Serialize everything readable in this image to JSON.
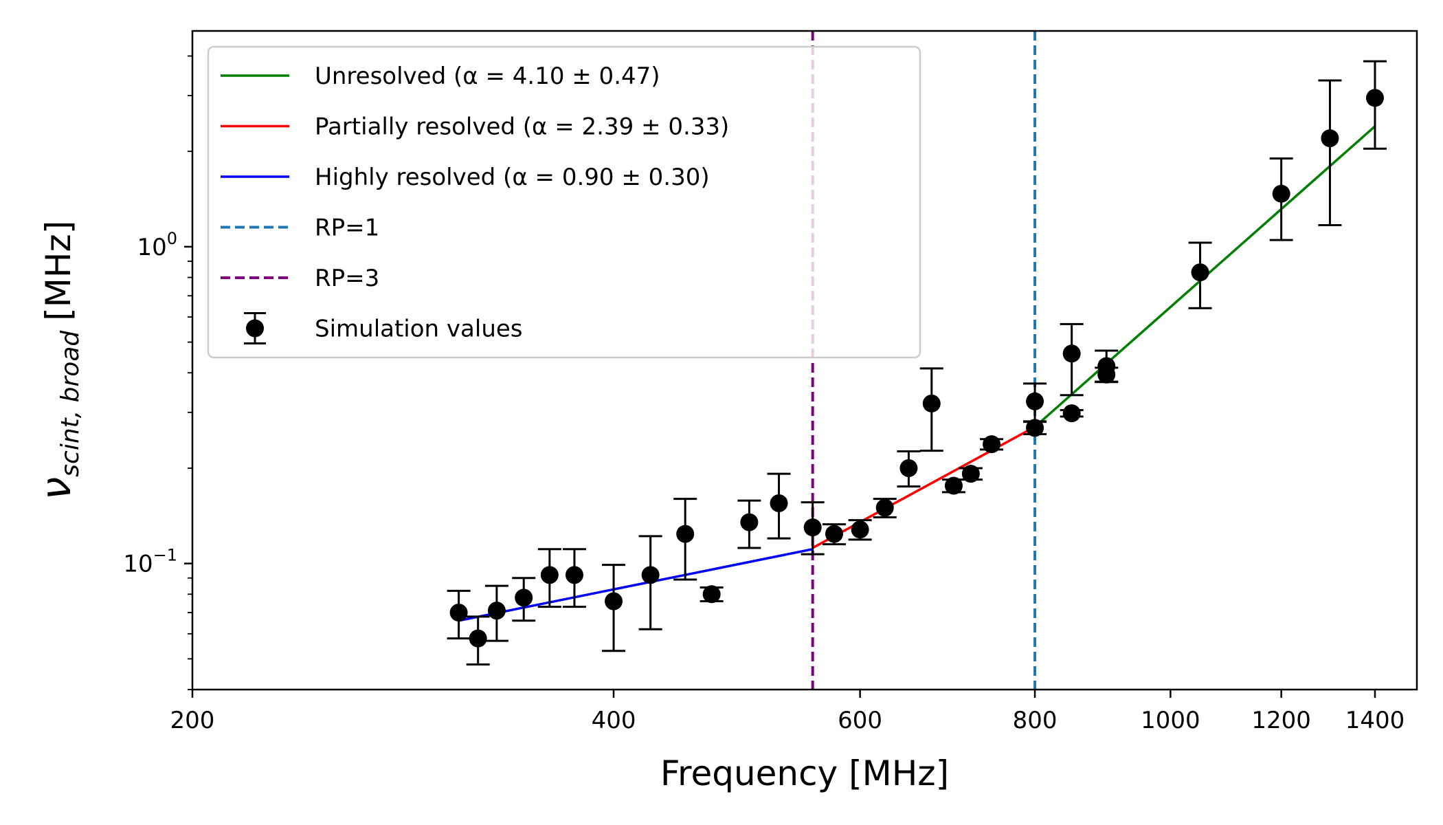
{
  "chart_data": {
    "type": "scatter",
    "xlabel": "Frequency [MHz]",
    "ylabel": {
      "symbol": "ν",
      "subscript": "scint, broad",
      "unit": "[MHz]"
    },
    "xscale": "log",
    "yscale": "log",
    "xlim": [
      200,
      1500
    ],
    "ylim": [
      0.04,
      4.8
    ],
    "x_ticks": [
      {
        "value": 200,
        "label": "200"
      },
      {
        "value": 400,
        "label": "400"
      },
      {
        "value": 600,
        "label": "600"
      },
      {
        "value": 800,
        "label": "800"
      },
      {
        "value": 1000,
        "label": "1000"
      },
      {
        "value": 1200,
        "label": "1200"
      },
      {
        "value": 1400,
        "label": "1400"
      }
    ],
    "y_ticks": [
      {
        "value": 0.1,
        "base": "10",
        "exp": "−1"
      },
      {
        "value": 1,
        "base": "10",
        "exp": "0"
      }
    ],
    "legend_position": "upper-left",
    "series": [
      {
        "name": "Unresolved (α = 4.10 ± 0.47)",
        "kind": "fit-line",
        "color": "#008000",
        "points": [
          [
            800,
            0.27
          ],
          [
            1400,
            2.4
          ]
        ]
      },
      {
        "name": "Partially resolved (α = 2.39 ± 0.33)",
        "kind": "fit-line",
        "color": "#ff0000",
        "points": [
          [
            555,
            0.112
          ],
          [
            800,
            0.27
          ]
        ]
      },
      {
        "name": "Highly resolved (α = 0.90 ± 0.30)",
        "kind": "fit-line",
        "color": "#0000ff",
        "points": [
          [
            310,
            0.066
          ],
          [
            555,
            0.111
          ]
        ]
      },
      {
        "name": "RP=1",
        "kind": "vline",
        "color": "#1f77b4",
        "x": 800
      },
      {
        "name": "RP=3",
        "kind": "vline",
        "color": "#800080",
        "x": 555
      },
      {
        "name": "Simulation values",
        "kind": "errorbar",
        "color": "#000000",
        "points": [
          {
            "x": 310,
            "y": 0.07,
            "lo": 0.058,
            "hi": 0.082
          },
          {
            "x": 320,
            "y": 0.058,
            "lo": 0.048,
            "hi": 0.068
          },
          {
            "x": 330,
            "y": 0.071,
            "lo": 0.057,
            "hi": 0.085
          },
          {
            "x": 345,
            "y": 0.078,
            "lo": 0.066,
            "hi": 0.09
          },
          {
            "x": 360,
            "y": 0.092,
            "lo": 0.073,
            "hi": 0.111
          },
          {
            "x": 375,
            "y": 0.092,
            "lo": 0.073,
            "hi": 0.111
          },
          {
            "x": 400,
            "y": 0.076,
            "lo": 0.053,
            "hi": 0.099
          },
          {
            "x": 425,
            "y": 0.092,
            "lo": 0.062,
            "hi": 0.122
          },
          {
            "x": 450,
            "y": 0.124,
            "lo": 0.089,
            "hi": 0.16
          },
          {
            "x": 470,
            "y": 0.08,
            "lo": 0.076,
            "hi": 0.084
          },
          {
            "x": 500,
            "y": 0.135,
            "lo": 0.112,
            "hi": 0.158
          },
          {
            "x": 525,
            "y": 0.155,
            "lo": 0.12,
            "hi": 0.192
          },
          {
            "x": 555,
            "y": 0.13,
            "lo": 0.107,
            "hi": 0.156
          },
          {
            "x": 575,
            "y": 0.124,
            "lo": 0.115,
            "hi": 0.133
          },
          {
            "x": 600,
            "y": 0.128,
            "lo": 0.119,
            "hi": 0.137
          },
          {
            "x": 625,
            "y": 0.15,
            "lo": 0.14,
            "hi": 0.16
          },
          {
            "x": 650,
            "y": 0.2,
            "lo": 0.175,
            "hi": 0.226
          },
          {
            "x": 675,
            "y": 0.32,
            "lo": 0.227,
            "hi": 0.413
          },
          {
            "x": 700,
            "y": 0.176,
            "lo": 0.168,
            "hi": 0.184
          },
          {
            "x": 720,
            "y": 0.192,
            "lo": 0.184,
            "hi": 0.2
          },
          {
            "x": 745,
            "y": 0.238,
            "lo": 0.229,
            "hi": 0.247
          },
          {
            "x": 800,
            "y": 0.268,
            "lo": 0.256,
            "hi": 0.28
          },
          {
            "x": 800,
            "y": 0.325,
            "lo": 0.281,
            "hi": 0.37
          },
          {
            "x": 850,
            "y": 0.298,
            "lo": 0.291,
            "hi": 0.305
          },
          {
            "x": 850,
            "y": 0.46,
            "lo": 0.34,
            "hi": 0.57
          },
          {
            "x": 900,
            "y": 0.395,
            "lo": 0.375,
            "hi": 0.415
          },
          {
            "x": 900,
            "y": 0.42,
            "lo": 0.374,
            "hi": 0.47
          },
          {
            "x": 1050,
            "y": 0.83,
            "lo": 0.64,
            "hi": 1.03
          },
          {
            "x": 1200,
            "y": 1.47,
            "lo": 1.05,
            "hi": 1.9
          },
          {
            "x": 1300,
            "y": 2.2,
            "lo": 1.17,
            "hi": 3.35
          },
          {
            "x": 1400,
            "y": 2.95,
            "lo": 2.04,
            "hi": 3.85
          }
        ]
      }
    ]
  }
}
